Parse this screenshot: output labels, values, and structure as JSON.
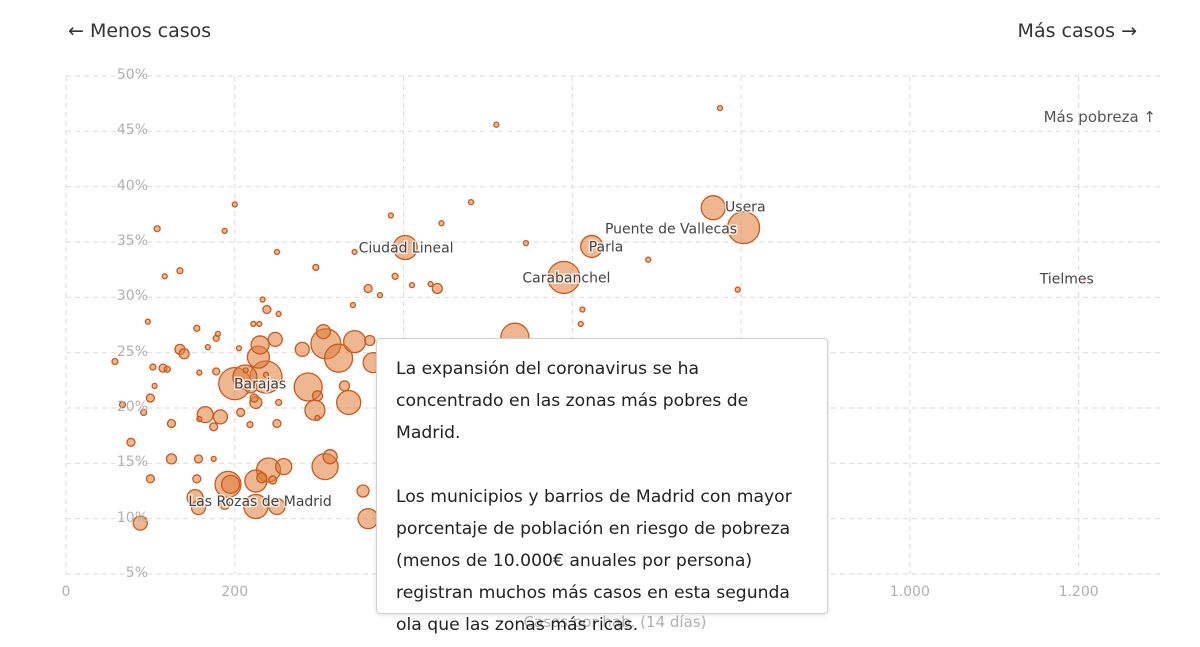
{
  "nav": {
    "less_label": "← Menos casos",
    "more_label": "Más casos →"
  },
  "tooltip": {
    "paragraph_1": "La expansión del coronavirus se ha concentrado en las zonas más pobres de Madrid.",
    "paragraph_2": "Los municipios y barrios de Madrid con mayor porcentaje de población en riesgo de pobreza (menos de 10.000€ anuales por persona) registran muchos más casos en esta segunda ola que las zonas más ricas."
  },
  "colors": {
    "point_fill": "#e07b39",
    "point_stroke": "#c85a1a",
    "grid": "#e0e0e0",
    "tick_text": "#b0b0b0",
    "label_text": "#444444"
  },
  "chart_data": {
    "type": "scatter",
    "xlabel": "Casos por hab. (14 días)",
    "ylabel": "",
    "poverty_hint": "Más pobreza ↑",
    "xlim": [
      0,
      1300
    ],
    "ylim": [
      5,
      50
    ],
    "x_tick_values": [
      0,
      200,
      400,
      600,
      800,
      1000,
      1200
    ],
    "x_tick_labels": [
      "0",
      "200",
      "",
      "",
      "",
      "1.000",
      "1.200"
    ],
    "y_tick_values": [
      5,
      10,
      15,
      20,
      25,
      30,
      35,
      40,
      45,
      50
    ],
    "y_tick_labels": [
      "5%",
      "10%",
      "15%",
      "20%",
      "25%",
      "30%",
      "35%",
      "40%",
      "45%",
      "50%"
    ],
    "size_encoding": "población",
    "labels": [
      {
        "text": "Usera",
        "x": 805,
        "y": 38.2
      },
      {
        "text": "Puente de Vallecas",
        "x": 717,
        "y": 36.2
      },
      {
        "text": "Parla",
        "x": 640,
        "y": 34.6
      },
      {
        "text": "Ciudad Lineal",
        "x": 403,
        "y": 34.5
      },
      {
        "text": "Carabanchel",
        "x": 593,
        "y": 31.8
      },
      {
        "text": "Tielmes",
        "x": 1186,
        "y": 31.7
      },
      {
        "text": "Barajas",
        "x": 230,
        "y": 22.2
      },
      {
        "text": "Las Rozas de Madrid",
        "x": 230,
        "y": 11.6
      }
    ],
    "points": [
      {
        "x": 767,
        "y": 38.1,
        "size": 12
      },
      {
        "x": 803,
        "y": 36.3,
        "size": 16
      },
      {
        "x": 623,
        "y": 34.6,
        "size": 11
      },
      {
        "x": 402,
        "y": 34.5,
        "size": 12
      },
      {
        "x": 590,
        "y": 31.8,
        "size": 16
      },
      {
        "x": 1208,
        "y": 31.6,
        "size": 1.5
      },
      {
        "x": 775,
        "y": 47.1,
        "size": 2.5
      },
      {
        "x": 510,
        "y": 45.6,
        "size": 2.5
      },
      {
        "x": 200,
        "y": 38.4,
        "size": 2.5
      },
      {
        "x": 480,
        "y": 38.6,
        "size": 2.5
      },
      {
        "x": 385,
        "y": 37.4,
        "size": 2.5
      },
      {
        "x": 445,
        "y": 36.7,
        "size": 2.5
      },
      {
        "x": 108,
        "y": 36.2,
        "size": 3
      },
      {
        "x": 188,
        "y": 36.0,
        "size": 2.5
      },
      {
        "x": 545,
        "y": 34.9,
        "size": 2.5
      },
      {
        "x": 250,
        "y": 34.1,
        "size": 2.5
      },
      {
        "x": 342,
        "y": 34.1,
        "size": 2.5
      },
      {
        "x": 690,
        "y": 33.4,
        "size": 2.5
      },
      {
        "x": 296,
        "y": 32.7,
        "size": 3
      },
      {
        "x": 135,
        "y": 32.4,
        "size": 3
      },
      {
        "x": 117,
        "y": 31.9,
        "size": 2.5
      },
      {
        "x": 390,
        "y": 31.9,
        "size": 3
      },
      {
        "x": 410,
        "y": 31.1,
        "size": 2.5
      },
      {
        "x": 432,
        "y": 31.2,
        "size": 2.5
      },
      {
        "x": 440,
        "y": 30.8,
        "size": 5
      },
      {
        "x": 358,
        "y": 30.8,
        "size": 4
      },
      {
        "x": 796,
        "y": 30.7,
        "size": 2.5
      },
      {
        "x": 372,
        "y": 30.2,
        "size": 2.5
      },
      {
        "x": 233,
        "y": 29.8,
        "size": 2.5
      },
      {
        "x": 340,
        "y": 29.3,
        "size": 2.5
      },
      {
        "x": 238,
        "y": 28.9,
        "size": 4
      },
      {
        "x": 612,
        "y": 28.9,
        "size": 2.5
      },
      {
        "x": 252,
        "y": 28.5,
        "size": 2.5
      },
      {
        "x": 97,
        "y": 27.8,
        "size": 2.5
      },
      {
        "x": 222,
        "y": 27.6,
        "size": 2.5
      },
      {
        "x": 229,
        "y": 27.6,
        "size": 2.5
      },
      {
        "x": 610,
        "y": 27.6,
        "size": 2.5
      },
      {
        "x": 155,
        "y": 27.2,
        "size": 3
      },
      {
        "x": 180,
        "y": 26.7,
        "size": 2.5
      },
      {
        "x": 305,
        "y": 26.9,
        "size": 7
      },
      {
        "x": 178,
        "y": 26.3,
        "size": 3
      },
      {
        "x": 248,
        "y": 26.2,
        "size": 7
      },
      {
        "x": 342,
        "y": 26.0,
        "size": 11
      },
      {
        "x": 360,
        "y": 26.1,
        "size": 5
      },
      {
        "x": 308,
        "y": 25.8,
        "size": 15
      },
      {
        "x": 230,
        "y": 25.7,
        "size": 9
      },
      {
        "x": 532,
        "y": 26.4,
        "size": 14
      },
      {
        "x": 168,
        "y": 25.5,
        "size": 2.5
      },
      {
        "x": 135,
        "y": 25.3,
        "size": 5
      },
      {
        "x": 205,
        "y": 25.4,
        "size": 2.5
      },
      {
        "x": 140,
        "y": 24.9,
        "size": 5
      },
      {
        "x": 280,
        "y": 25.3,
        "size": 7
      },
      {
        "x": 228,
        "y": 24.6,
        "size": 11
      },
      {
        "x": 323,
        "y": 24.5,
        "size": 14
      },
      {
        "x": 364,
        "y": 24.1,
        "size": 10
      },
      {
        "x": 58,
        "y": 24.2,
        "size": 3
      },
      {
        "x": 103,
        "y": 23.7,
        "size": 3
      },
      {
        "x": 115,
        "y": 23.6,
        "size": 4
      },
      {
        "x": 120,
        "y": 23.5,
        "size": 3
      },
      {
        "x": 213,
        "y": 23.4,
        "size": 2.5
      },
      {
        "x": 178,
        "y": 23.3,
        "size": 3.5
      },
      {
        "x": 237,
        "y": 23.0,
        "size": 2.5
      },
      {
        "x": 158,
        "y": 23.2,
        "size": 2.5
      },
      {
        "x": 237,
        "y": 22.8,
        "size": 16
      },
      {
        "x": 212,
        "y": 22.8,
        "size": 12
      },
      {
        "x": 200,
        "y": 22.2,
        "size": 16
      },
      {
        "x": 219,
        "y": 21.9,
        "size": 6
      },
      {
        "x": 105,
        "y": 22.0,
        "size": 2.5
      },
      {
        "x": 287,
        "y": 21.9,
        "size": 14
      },
      {
        "x": 330,
        "y": 22.0,
        "size": 5
      },
      {
        "x": 298,
        "y": 21.1,
        "size": 5
      },
      {
        "x": 100,
        "y": 20.9,
        "size": 4
      },
      {
        "x": 223,
        "y": 20.9,
        "size": 4
      },
      {
        "x": 225,
        "y": 20.5,
        "size": 6
      },
      {
        "x": 252,
        "y": 20.5,
        "size": 3
      },
      {
        "x": 67,
        "y": 20.3,
        "size": 3
      },
      {
        "x": 335,
        "y": 20.5,
        "size": 12
      },
      {
        "x": 295,
        "y": 19.8,
        "size": 10
      },
      {
        "x": 92,
        "y": 19.6,
        "size": 3
      },
      {
        "x": 207,
        "y": 19.6,
        "size": 4
      },
      {
        "x": 165,
        "y": 19.4,
        "size": 8
      },
      {
        "x": 183,
        "y": 19.2,
        "size": 7
      },
      {
        "x": 298,
        "y": 19.1,
        "size": 2.5
      },
      {
        "x": 158,
        "y": 19.0,
        "size": 2.5
      },
      {
        "x": 125,
        "y": 18.6,
        "size": 4
      },
      {
        "x": 175,
        "y": 18.3,
        "size": 4
      },
      {
        "x": 218,
        "y": 18.5,
        "size": 3
      },
      {
        "x": 250,
        "y": 18.6,
        "size": 4
      },
      {
        "x": 77,
        "y": 16.9,
        "size": 4
      },
      {
        "x": 313,
        "y": 15.6,
        "size": 7
      },
      {
        "x": 125,
        "y": 15.4,
        "size": 5
      },
      {
        "x": 157,
        "y": 15.4,
        "size": 4
      },
      {
        "x": 175,
        "y": 15.4,
        "size": 2.5
      },
      {
        "x": 307,
        "y": 14.7,
        "size": 13
      },
      {
        "x": 240,
        "y": 14.4,
        "size": 12
      },
      {
        "x": 258,
        "y": 14.7,
        "size": 8
      },
      {
        "x": 232,
        "y": 13.7,
        "size": 5
      },
      {
        "x": 155,
        "y": 13.6,
        "size": 4
      },
      {
        "x": 100,
        "y": 13.6,
        "size": 4
      },
      {
        "x": 245,
        "y": 13.5,
        "size": 4
      },
      {
        "x": 225,
        "y": 13.4,
        "size": 11
      },
      {
        "x": 192,
        "y": 13.1,
        "size": 13
      },
      {
        "x": 195,
        "y": 13.1,
        "size": 9
      },
      {
        "x": 352,
        "y": 12.5,
        "size": 6
      },
      {
        "x": 153,
        "y": 11.9,
        "size": 8
      },
      {
        "x": 157,
        "y": 11.0,
        "size": 7
      },
      {
        "x": 225,
        "y": 11.1,
        "size": 12
      },
      {
        "x": 250,
        "y": 11.1,
        "size": 8
      },
      {
        "x": 188,
        "y": 11.3,
        "size": 5
      },
      {
        "x": 358,
        "y": 10.0,
        "size": 10
      },
      {
        "x": 88,
        "y": 9.6,
        "size": 7
      }
    ]
  }
}
